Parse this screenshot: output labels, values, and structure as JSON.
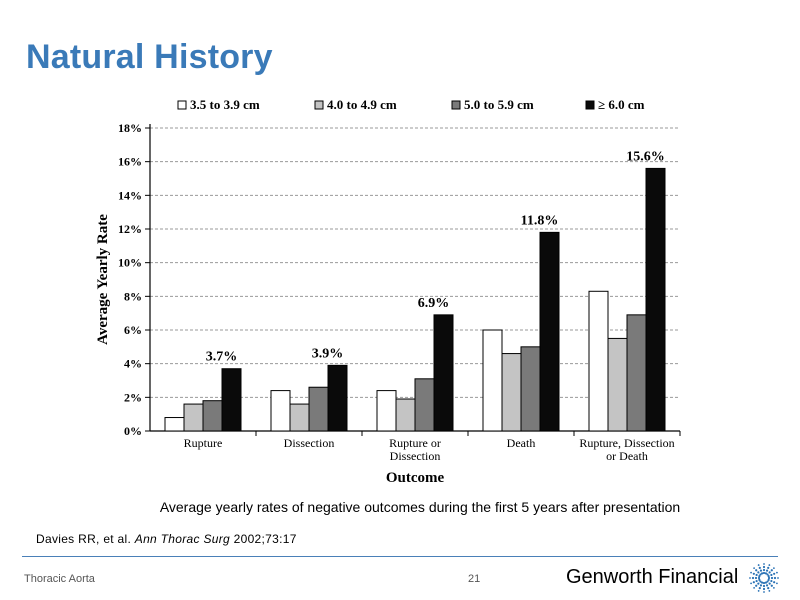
{
  "slide": {
    "title": "Natural History",
    "caption": "Average yearly rates of negative outcomes during the first 5 years after presentation",
    "citation_authors": "Davies RR, et al.",
    "citation_journal": "Ann Thorac Surg",
    "citation_details": "2002;73:17"
  },
  "footer": {
    "left_text": "Thoracic Aorta",
    "page_number": "21",
    "logo_text": "Genworth Financial",
    "logo_icon": "starburst-icon"
  },
  "chart_data": {
    "type": "bar",
    "title": "",
    "xlabel": "Outcome",
    "ylabel": "Average Yearly Rate",
    "ylim": [
      0,
      18
    ],
    "y_ticks": [
      "0%",
      "2%",
      "4%",
      "6%",
      "8%",
      "10%",
      "12%",
      "14%",
      "16%",
      "18%"
    ],
    "grid": true,
    "legend_position": "top",
    "categories": [
      [
        "Rupture"
      ],
      [
        "Dissection"
      ],
      [
        "Rupture or",
        "Dissection"
      ],
      [
        "Death"
      ],
      [
        "Rupture, Dissection",
        "or Death"
      ]
    ],
    "series": [
      {
        "name": "3.5 to 3.9 cm",
        "color": "#ffffff",
        "values": [
          0.8,
          2.4,
          2.4,
          6.0,
          8.3
        ]
      },
      {
        "name": "4.0 to 4.9 cm",
        "color": "#c4c4c4",
        "values": [
          1.6,
          1.6,
          1.9,
          4.6,
          5.5
        ]
      },
      {
        "name": "5.0 to 5.9 cm",
        "color": "#7a7a7a",
        "values": [
          1.8,
          2.6,
          3.1,
          5.0,
          6.9
        ]
      },
      {
        "name": "≥ 6.0 cm",
        "color": "#0a0a0a",
        "values": [
          3.7,
          3.9,
          6.9,
          11.8,
          15.6
        ]
      }
    ],
    "data_labels": [
      "3.7%",
      "3.9%",
      "6.9%",
      "11.8%",
      "15.6%"
    ]
  }
}
